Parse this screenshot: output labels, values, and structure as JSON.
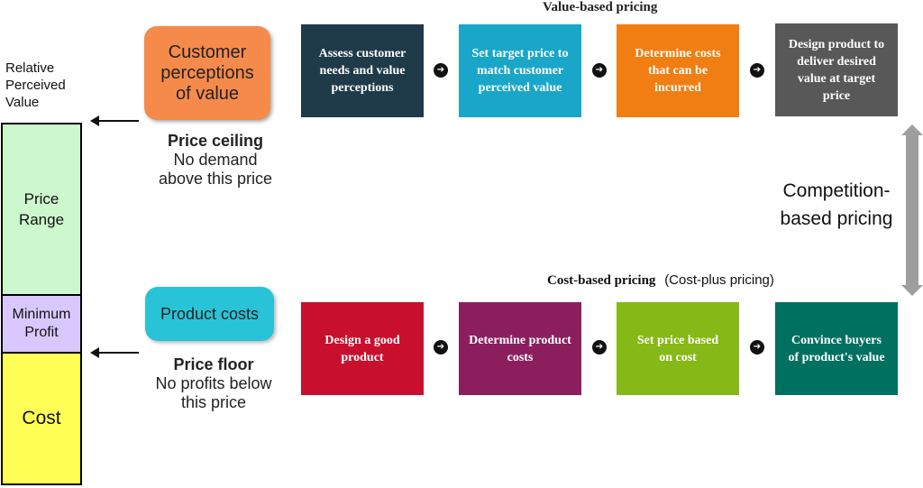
{
  "left_scale": {
    "title": "Relative Perceived Value",
    "segments": {
      "price_range": "Price Range",
      "minimum_profit": "Minimum Profit",
      "cost": "Cost"
    }
  },
  "value_side": {
    "box": "Customer perceptions of value",
    "label_head": "Price ceiling",
    "label_body": "No demand above this price"
  },
  "cost_side": {
    "box": "Product costs",
    "label_head": "Price floor",
    "label_body": "No profits below this price"
  },
  "value_based": {
    "title": "Value-based pricing",
    "steps": [
      "Assess customer needs and value perceptions",
      "Set target price to match customer perceived value",
      "Determine costs that can be incurred",
      "Design product to deliver desired value at target price"
    ]
  },
  "cost_based": {
    "title": "Cost-based pricing",
    "subtitle": "(Cost-plus pricing)",
    "steps": [
      "Design a good product",
      "Determine product costs",
      "Set price based on cost",
      "Convince buyers of product's value"
    ]
  },
  "competition": {
    "label": "Competition-based pricing"
  },
  "icons": {
    "flow_arrow": "➔"
  },
  "colors": {
    "value_steps": [
      "#1f3a48",
      "#1aa6c8",
      "#f07e12",
      "#585858"
    ],
    "cost_steps": [
      "#c8102e",
      "#8b1f5e",
      "#86b817",
      "#007060"
    ]
  }
}
